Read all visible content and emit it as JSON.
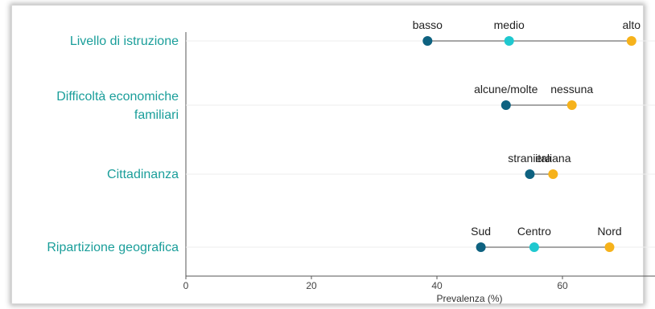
{
  "chart_data": {
    "type": "dot",
    "xlabel": "Prevalenza (%)",
    "xlim": [
      0,
      75
    ],
    "xticks": [
      0,
      20,
      40,
      60
    ],
    "grid": false,
    "colors": {
      "low": "#0e6280",
      "mid": "#1fc8cf",
      "high": "#f6b21b",
      "connector": "#a6a6a6",
      "category_text": "#1a9e9a"
    },
    "categories": [
      {
        "label": "Livello di istruzione",
        "points": [
          {
            "level": "basso",
            "value": 38.5,
            "color": "low"
          },
          {
            "level": "medio",
            "value": 51.5,
            "color": "mid"
          },
          {
            "level": "alto",
            "value": 71.0,
            "color": "high"
          }
        ]
      },
      {
        "label_lines": [
          "Difficoltà economiche",
          "familiari"
        ],
        "points": [
          {
            "level": "alcune/molte",
            "value": 51.0,
            "color": "low"
          },
          {
            "level": "nessuna",
            "value": 61.5,
            "color": "high"
          }
        ]
      },
      {
        "label": "Cittadinanza",
        "points": [
          {
            "level": "straniera",
            "value": 54.8,
            "color": "low"
          },
          {
            "level": "italiana",
            "value": 58.5,
            "color": "high"
          }
        ]
      },
      {
        "label": "Ripartizione geografica",
        "points": [
          {
            "level": "Sud",
            "value": 47.0,
            "color": "low"
          },
          {
            "level": "Centro",
            "value": 55.5,
            "color": "mid"
          },
          {
            "level": "Nord",
            "value": 67.5,
            "color": "high"
          }
        ]
      }
    ]
  }
}
